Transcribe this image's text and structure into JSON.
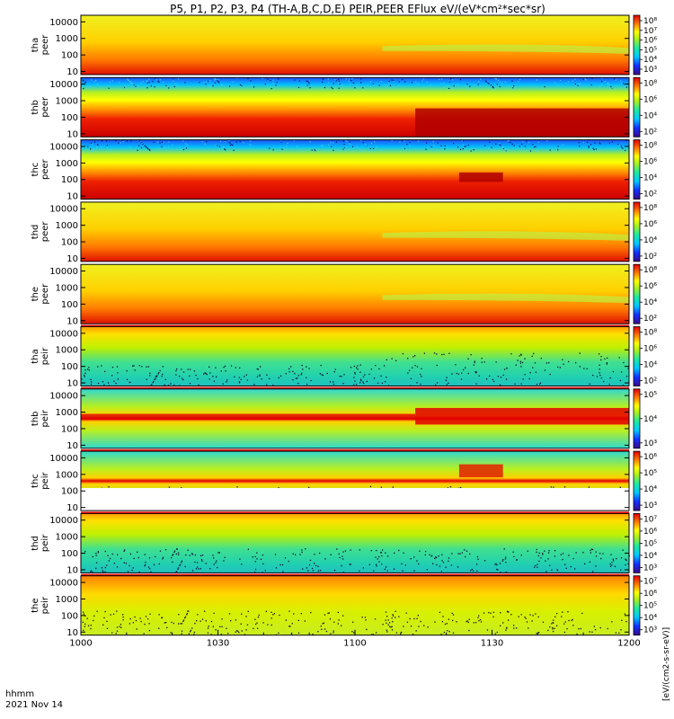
{
  "chart_data": {
    "type": "heatmap",
    "title": "P5, P1, P2, P3, P4 (TH-A,B,C,D,E) PEIR,PEER EFlux eV/(eV*cm²*sec*sr)",
    "xlabel_line1": "hhmm",
    "xlabel_line2": "2021 Nov 14",
    "x_ticks": [
      "1000",
      "1030",
      "1100",
      "1130",
      "1200"
    ],
    "x_range_hhmm": [
      "1000",
      "1200"
    ],
    "y_scale": "log",
    "y_ticks": [
      "10",
      "100",
      "1000",
      "10000"
    ],
    "colorbar_units": "[eV/(cm2-s-sr-eV)]",
    "colorbar_ticks_top": [
      "10⁸",
      "10⁷",
      "10⁶",
      "10⁵",
      "10⁴",
      "10³"
    ],
    "panels": [
      {
        "probe": "tha",
        "species": "peer",
        "label1": "tha",
        "label2": "peer",
        "cbar": [
          "10⁸",
          "10⁷",
          "10⁶",
          "10⁵",
          "10⁴",
          "10³"
        ]
      },
      {
        "probe": "thb",
        "species": "peer",
        "label1": "thb",
        "label2": "peer",
        "cbar": [
          "10⁸",
          "10⁶",
          "10⁴",
          "10²"
        ]
      },
      {
        "probe": "thc",
        "species": "peer",
        "label1": "thc",
        "label2": "peer",
        "cbar": [
          "10⁸",
          "10⁶",
          "10⁴",
          "10²"
        ]
      },
      {
        "probe": "thd",
        "species": "peer",
        "label1": "thd",
        "label2": "peer",
        "cbar": [
          "10⁸",
          "10⁶",
          "10⁴",
          "10²"
        ]
      },
      {
        "probe": "the",
        "species": "peer",
        "label1": "the",
        "label2": "peer",
        "cbar": [
          "10⁸",
          "10⁶",
          "10⁴",
          "10²"
        ]
      },
      {
        "probe": "tha",
        "species": "peir",
        "label1": "tha",
        "label2": "peir",
        "cbar": [
          "10⁸",
          "10⁶",
          "10⁴",
          "10²"
        ]
      },
      {
        "probe": "thb",
        "species": "peir",
        "label1": "thb",
        "label2": "peir",
        "cbar": [
          "10⁵",
          "10⁴",
          "10³"
        ]
      },
      {
        "probe": "thc",
        "species": "peir",
        "label1": "thc",
        "label2": "peir",
        "cbar": [
          "10⁶",
          "10⁵",
          "10⁴",
          "10³"
        ]
      },
      {
        "probe": "thd",
        "species": "peir",
        "label1": "thd",
        "label2": "peir",
        "cbar": [
          "10⁷",
          "10⁶",
          "10⁵",
          "10⁴",
          "10³"
        ]
      },
      {
        "probe": "the",
        "species": "peir",
        "label1": "the",
        "label2": "peir",
        "cbar": [
          "10⁷",
          "10⁶",
          "10⁵",
          "10⁴",
          "10³"
        ]
      }
    ]
  }
}
